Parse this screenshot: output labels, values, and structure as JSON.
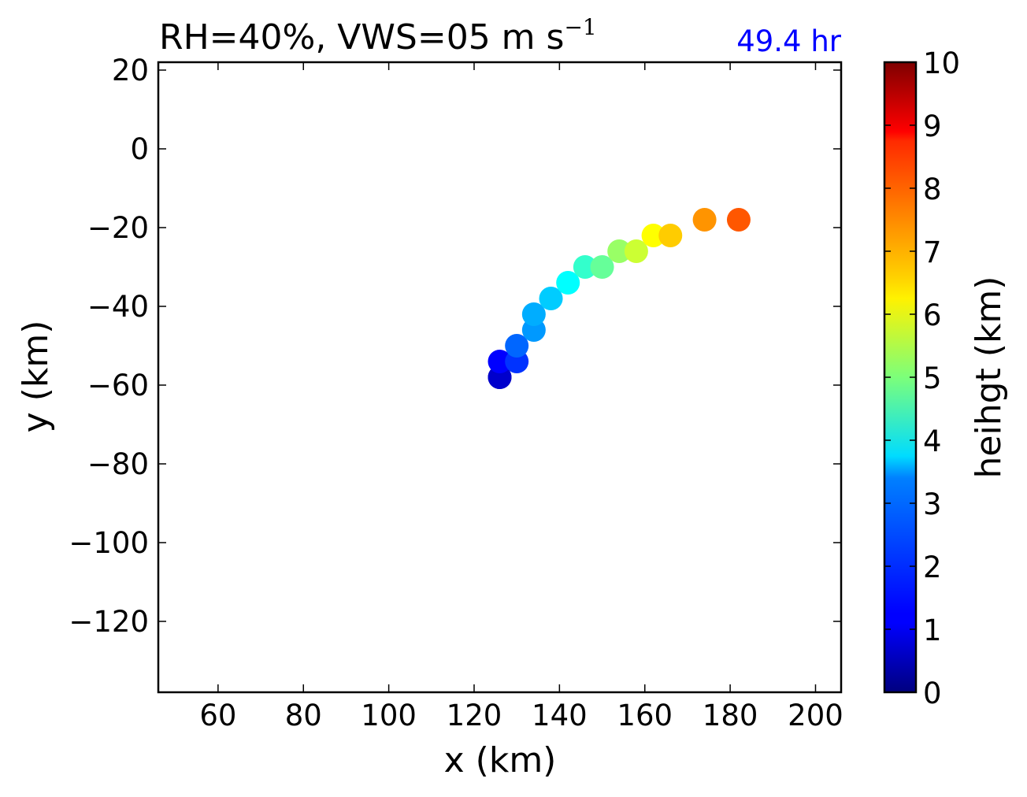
{
  "chart_data": {
    "type": "scatter",
    "title": {
      "main": "RH=40%, VWS=05 m s",
      "superscript": "−1"
    },
    "time_label": "49.4 hr",
    "xlabel": "x (km)",
    "ylabel": "y (km)",
    "xlim": [
      46,
      206
    ],
    "ylim": [
      -138,
      22
    ],
    "x_ticks": [
      60,
      80,
      100,
      120,
      140,
      160,
      180,
      200
    ],
    "y_ticks": [
      20,
      0,
      -20,
      -40,
      -60,
      -80,
      -100,
      -120
    ],
    "x_tick_labels": [
      "60",
      "80",
      "100",
      "120",
      "140",
      "160",
      "180",
      "200"
    ],
    "y_tick_labels": [
      "20",
      "0",
      "−20",
      "−40",
      "−60",
      "−80",
      "−100",
      "−120"
    ],
    "grid": false,
    "colorbar": {
      "label": "heihgt (km)",
      "range": [
        0,
        10
      ],
      "colormap": "jet",
      "ticks": [
        0,
        1,
        2,
        3,
        4,
        5,
        6,
        7,
        8,
        9,
        10
      ],
      "tick_labels": [
        "0",
        "1",
        "2",
        "3",
        "4",
        "5",
        "6",
        "7",
        "8",
        "9",
        "10"
      ]
    },
    "points": [
      {
        "x": 126,
        "y": -58,
        "height": 0.25
      },
      {
        "x": 126,
        "y": -58,
        "height": 0.75
      },
      {
        "x": 126,
        "y": -54,
        "height": 1.25
      },
      {
        "x": 130,
        "y": -54,
        "height": 1.75
      },
      {
        "x": 130,
        "y": -50,
        "height": 2.25
      },
      {
        "x": 134,
        "y": -46,
        "height": 2.75
      },
      {
        "x": 134,
        "y": -42,
        "height": 2.95
      },
      {
        "x": 138,
        "y": -38,
        "height": 3.25
      },
      {
        "x": 142,
        "y": -34,
        "height": 3.75
      },
      {
        "x": 146,
        "y": -30,
        "height": 4.25
      },
      {
        "x": 150,
        "y": -30,
        "height": 4.75
      },
      {
        "x": 154,
        "y": -26,
        "height": 5.25
      },
      {
        "x": 158,
        "y": -26,
        "height": 5.75
      },
      {
        "x": 162,
        "y": -22,
        "height": 6.25
      },
      {
        "x": 166,
        "y": -22,
        "height": 6.75
      },
      {
        "x": 174,
        "y": -18,
        "height": 7.3
      },
      {
        "x": 182,
        "y": -18,
        "height": 7.9
      }
    ]
  }
}
